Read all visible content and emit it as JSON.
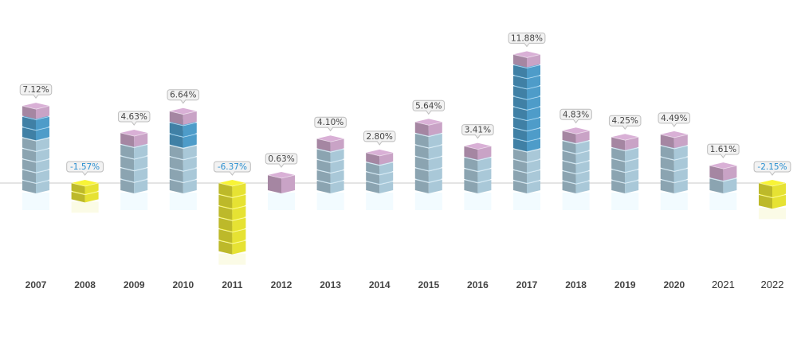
{
  "chart_data": {
    "type": "bar",
    "title": "",
    "xlabel": "",
    "ylabel": "",
    "categories": [
      "2007",
      "2008",
      "2009",
      "2010",
      "2011",
      "2012",
      "2013",
      "2014",
      "2015",
      "2016",
      "2017",
      "2018",
      "2019",
      "2020",
      "2021",
      "2022"
    ],
    "values": [
      7.12,
      -1.57,
      4.63,
      6.64,
      -6.37,
      0.63,
      4.1,
      2.8,
      5.64,
      3.41,
      11.88,
      4.83,
      4.25,
      4.49,
      1.61,
      -2.15
    ],
    "value_labels": [
      "7.12%",
      "-1.57%",
      "4.63%",
      "6.64%",
      "-6.37%",
      "0.63%",
      "4.10%",
      "2.80%",
      "5.64%",
      "3.41%",
      "11.88%",
      "4.83%",
      "4.25%",
      "4.49%",
      "1.61%",
      "-2.15%"
    ],
    "grid": false,
    "legend": "none",
    "colors": {
      "positive_face": "#a9c8d8",
      "positive_dark_face": "#4e9cc9",
      "top_cap": "#c9a3c6",
      "negative_face": "#e6e233",
      "positive_label_text": "#444444",
      "negative_label_text": "#2a8fd0",
      "baseline": "#c8c8c8"
    }
  }
}
